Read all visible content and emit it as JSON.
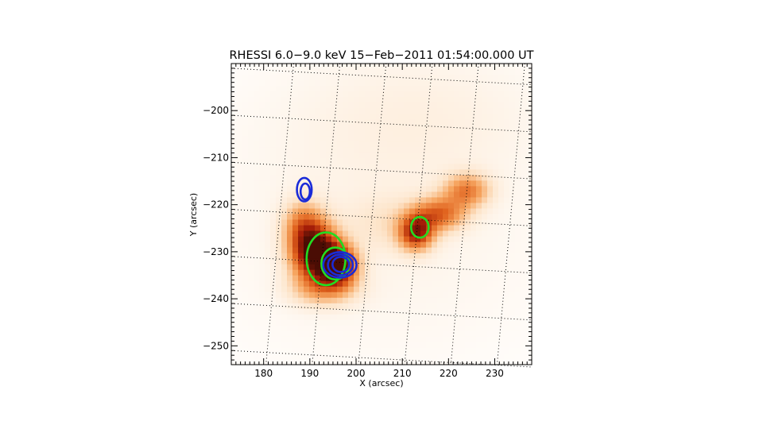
{
  "chart_data": {
    "type": "heatmap",
    "title": "RHESSI 6.0−9.0 keV 15−Feb−2011 01:54:00.000 UT",
    "xlabel": "X (arcsec)",
    "ylabel": "Y (arcsec)",
    "xlim": [
      173,
      238
    ],
    "ylim": [
      -254,
      -190
    ],
    "x_ticks": [
      "180",
      "190",
      "200",
      "210",
      "220",
      "230"
    ],
    "x_tick_values": [
      180,
      190,
      200,
      210,
      220,
      230
    ],
    "y_ticks": [
      "−200",
      "−210",
      "−220",
      "−230",
      "−240",
      "−250"
    ],
    "y_tick_values": [
      -200,
      -210,
      -220,
      -230,
      -240,
      -250
    ],
    "grid": "dotted heliographic grid",
    "colormap": [
      "#ffffff",
      "#fde4c9",
      "#f6a560",
      "#e0621d",
      "#a81f08",
      "#4a0d04"
    ],
    "intensity_sources": [
      {
        "x": 191,
        "y": -230,
        "amplitude": 0.95,
        "sigma_x": 3.6,
        "sigma_y": 4.2
      },
      {
        "x": 196,
        "y": -233,
        "amplitude": 0.85,
        "sigma_x": 3.0,
        "sigma_y": 3.0
      },
      {
        "x": 188.5,
        "y": -224,
        "amplitude": 0.35,
        "sigma_x": 3.0,
        "sigma_y": 3.5
      },
      {
        "x": 193,
        "y": -238,
        "amplitude": 0.3,
        "sigma_x": 5.0,
        "sigma_y": 2.5
      },
      {
        "x": 213,
        "y": -226,
        "amplitude": 0.7,
        "sigma_x": 2.6,
        "sigma_y": 2.6
      },
      {
        "x": 218,
        "y": -222,
        "amplitude": 0.5,
        "sigma_x": 4.0,
        "sigma_y": 2.5
      },
      {
        "x": 224,
        "y": -217,
        "amplitude": 0.45,
        "sigma_x": 3.5,
        "sigma_y": 2.5
      },
      {
        "x": 207,
        "y": -224,
        "amplitude": 0.12,
        "sigma_x": 6.0,
        "sigma_y": 4.0
      },
      {
        "x": 205,
        "y": -222,
        "amplitude": 0.08,
        "sigma_x": 30.0,
        "sigma_y": 25.0
      },
      {
        "x": 215,
        "y": -200,
        "amplitude": 0.06,
        "sigma_x": 20.0,
        "sigma_y": 10.0
      }
    ],
    "contours": [
      {
        "color": "#22dd22",
        "cx": 193.5,
        "cy": -231.5,
        "rx": 4.2,
        "ry": 5.6
      },
      {
        "color": "#22dd22",
        "cx": 195.5,
        "cy": -232.5,
        "rx": 3.0,
        "ry": 3.4
      },
      {
        "color": "#22dd22",
        "cx": 213.8,
        "cy": -224.8,
        "rx": 1.9,
        "ry": 2.2
      },
      {
        "color": "#1a2bd8",
        "cx": 188.8,
        "cy": -216.8,
        "rx": 1.6,
        "ry": 2.5
      },
      {
        "color": "#1a2bd8",
        "cx": 189.0,
        "cy": -217.2,
        "rx": 1.0,
        "ry": 1.7
      },
      {
        "color": "#1a2bd8",
        "cx": 196.5,
        "cy": -232.8,
        "rx": 3.6,
        "ry": 2.7
      },
      {
        "color": "#1a2bd8",
        "cx": 196.6,
        "cy": -232.8,
        "rx": 2.7,
        "ry": 2.2
      },
      {
        "color": "#1a2bd8",
        "cx": 196.7,
        "cy": -232.7,
        "rx": 1.8,
        "ry": 1.6
      }
    ]
  }
}
